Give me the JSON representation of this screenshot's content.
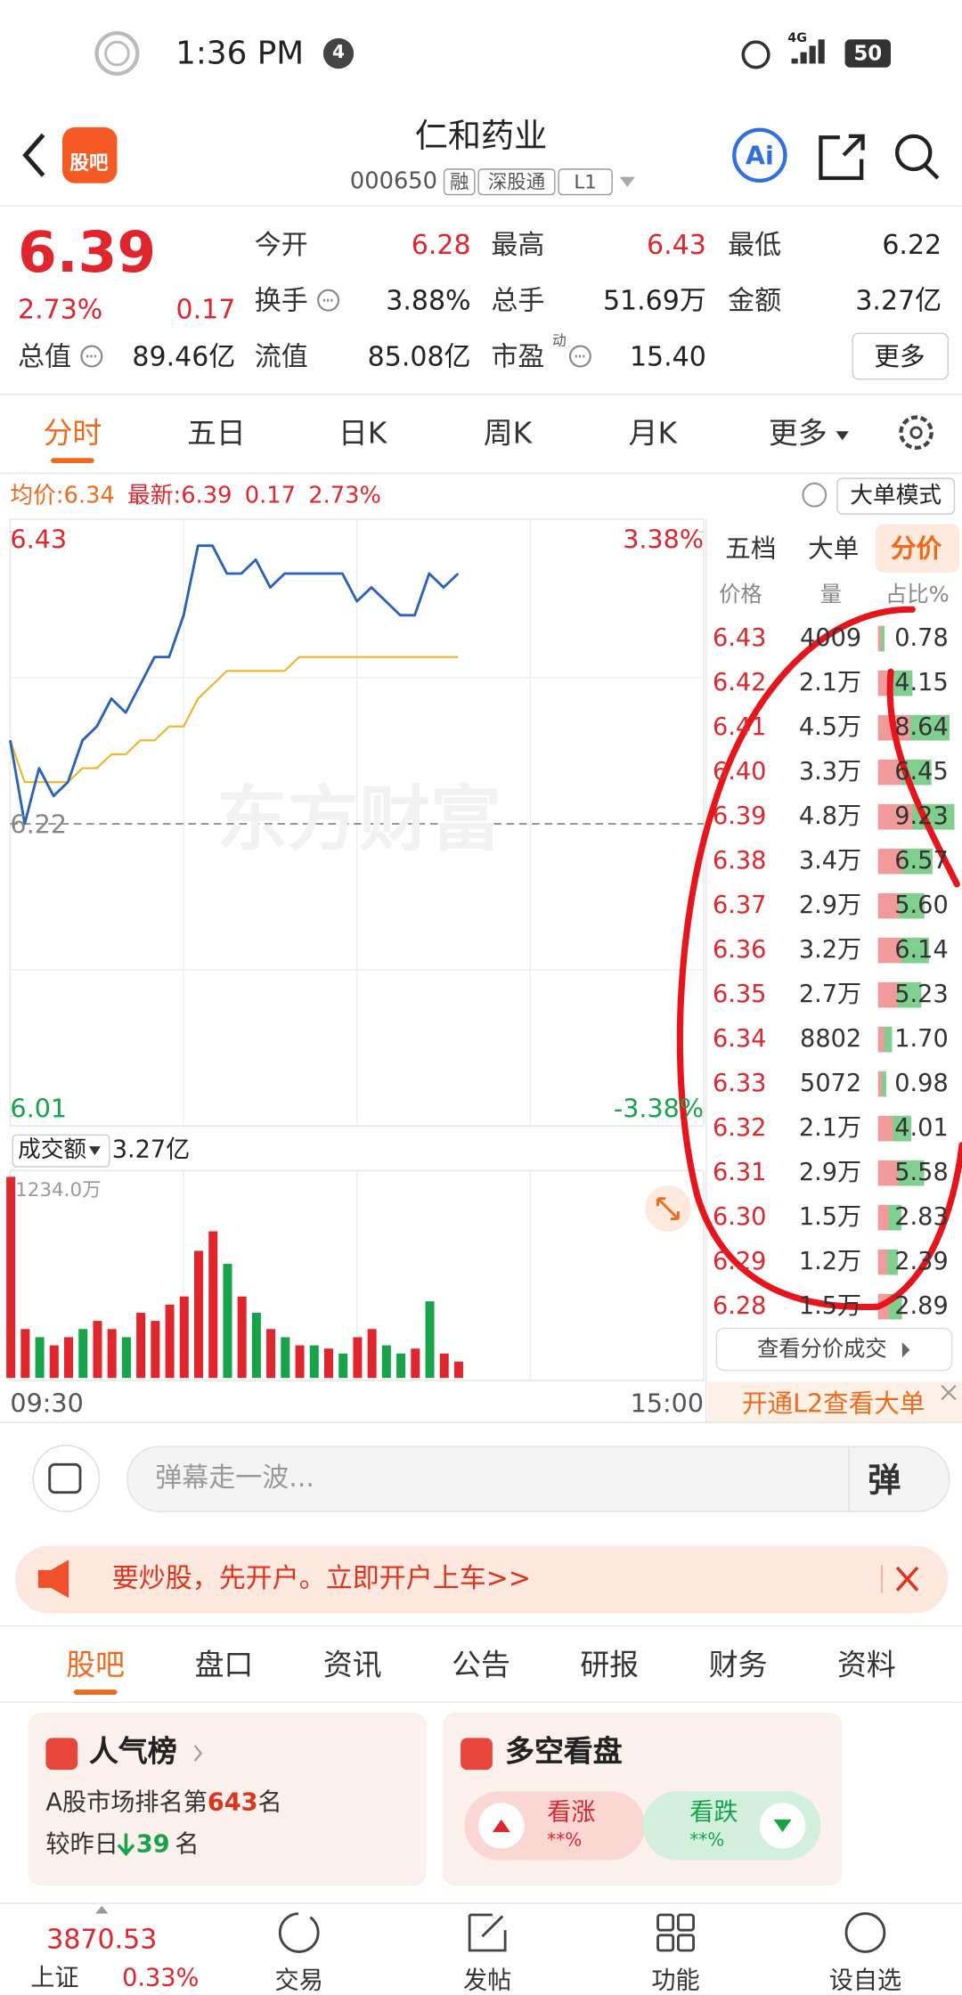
{
  "status_bar": {
    "time": "1:36 PM",
    "notification_count": "4",
    "network": "4G",
    "battery": "50"
  },
  "header": {
    "logo": "股吧",
    "title": "仁和药业",
    "code": "000650",
    "badges": [
      "融",
      "深股通",
      "L1"
    ],
    "ai_button": "Ai"
  },
  "quote": {
    "price": "6.39",
    "change_percent": "2.73%",
    "change": "0.17",
    "stats": [
      {
        "label": "今开",
        "value": "6.28"
      },
      {
        "label": "最高",
        "value": "6.43"
      },
      {
        "label": "最低",
        "value": "6.22"
      },
      {
        "label": "换手",
        "value": "3.88%"
      },
      {
        "label": "总手",
        "value": "51.69万"
      },
      {
        "label": "金额",
        "value": "3.27亿"
      },
      {
        "label": "总值",
        "value": "89.46亿"
      },
      {
        "label": "流值",
        "value": "85.08亿"
      },
      {
        "label": "市盈",
        "value": "15.40"
      }
    ],
    "pe_superscript": "动",
    "more_button": "更多"
  },
  "period_tabs": [
    "分时",
    "五日",
    "日K",
    "周K",
    "月K",
    "更多"
  ],
  "info_bar": {
    "average_label": "均价:",
    "average": "6.34",
    "latest_label": "最新:",
    "latest": "6.39",
    "change": "0.17",
    "change_percent": "2.73%",
    "mode_button": "大单模式"
  },
  "intraday_chart": {
    "type": "line",
    "watermark": "东方财富",
    "xlim": [
      0,
      240
    ],
    "x": [
      0,
      5,
      10,
      15,
      20,
      25,
      30,
      35,
      40,
      45,
      50,
      55,
      60,
      65,
      70,
      75,
      80,
      85,
      90,
      95,
      100,
      105,
      110,
      115,
      120,
      125,
      130,
      135,
      140,
      145,
      150,
      155
    ],
    "x_grid": [
      60,
      120,
      180
    ],
    "x_labels": [
      "09:30",
      "15:00"
    ],
    "ylim": [
      6.01,
      6.43
    ],
    "yticks": [
      6.43,
      6.22,
      6.01
    ],
    "y_grid": [
      6.325,
      6.115
    ],
    "y2lim": [
      -3.38,
      3.38
    ],
    "y2ticks": [
      {
        "value": 3.38,
        "label": "3.38%"
      },
      {
        "value": -3.38,
        "label": "-3.38%"
      }
    ],
    "price": {
      "color": "#2a62b8",
      "values": [
        6.28,
        6.22,
        6.26,
        6.24,
        6.25,
        6.28,
        6.29,
        6.31,
        6.3,
        6.32,
        6.34,
        6.34,
        6.37,
        6.42,
        6.42,
        6.4,
        6.4,
        6.41,
        6.39,
        6.4,
        6.4,
        6.4,
        6.4,
        6.4,
        6.38,
        6.39,
        6.38,
        6.37,
        6.37,
        6.4,
        6.39,
        6.4
      ]
    },
    "average": {
      "color": "#f0b429",
      "values": [
        6.28,
        6.25,
        6.25,
        6.25,
        6.25,
        6.26,
        6.26,
        6.27,
        6.27,
        6.28,
        6.28,
        6.29,
        6.29,
        6.31,
        6.32,
        6.33,
        6.33,
        6.33,
        6.33,
        6.33,
        6.34,
        6.34,
        6.34,
        6.34,
        6.34,
        6.34,
        6.34,
        6.34,
        6.34,
        6.34,
        6.34,
        6.34
      ]
    },
    "volume": {
      "label": "成交额",
      "total": "3.27亿",
      "ylim": [
        0,
        1234
      ],
      "yticks": [
        {
          "value": 1234,
          "label": "1234.0万"
        }
      ],
      "values": [
        1234,
        300,
        250,
        200,
        250,
        300,
        350,
        300,
        250,
        400,
        350,
        450,
        500,
        780,
        900,
        700,
        500,
        400,
        300,
        250,
        200,
        200,
        180,
        150,
        250,
        300,
        200,
        150,
        180,
        470,
        150,
        100
      ],
      "colors": [
        "#e0262c",
        "#e0262c",
        "#16a34a",
        "#e0262c",
        "#e0262c",
        "#16a34a",
        "#e0262c",
        "#e0262c",
        "#16a34a",
        "#e0262c",
        "#e0262c",
        "#e0262c",
        "#e0262c",
        "#e0262c",
        "#e0262c",
        "#16a34a",
        "#e0262c",
        "#16a34a",
        "#e0262c",
        "#16a34a",
        "#e0262c",
        "#16a34a",
        "#e0262c",
        "#16a34a",
        "#e0262c",
        "#e0262c",
        "#16a34a",
        "#16a34a",
        "#e0262c",
        "#16a34a",
        "#e0262c",
        "#e0262c"
      ]
    }
  },
  "order_book": {
    "tabs": [
      "五档",
      "大单",
      "分价"
    ],
    "columns": [
      "价格",
      "量",
      "占比%"
    ],
    "rows": [
      {
        "price": "6.43",
        "volume": "4009",
        "percent": "0.78"
      },
      {
        "price": "6.42",
        "volume": "2.1万",
        "percent": "4.15"
      },
      {
        "price": "6.41",
        "volume": "4.5万",
        "percent": "8.64"
      },
      {
        "price": "6.40",
        "volume": "3.3万",
        "percent": "6.45"
      },
      {
        "price": "6.39",
        "volume": "4.8万",
        "percent": "9.23"
      },
      {
        "price": "6.38",
        "volume": "3.4万",
        "percent": "6.57"
      },
      {
        "price": "6.37",
        "volume": "2.9万",
        "percent": "5.60"
      },
      {
        "price": "6.36",
        "volume": "3.2万",
        "percent": "6.14"
      },
      {
        "price": "6.35",
        "volume": "2.7万",
        "percent": "5.23"
      },
      {
        "price": "6.34",
        "volume": "8802",
        "percent": "1.70"
      },
      {
        "price": "6.33",
        "volume": "5072",
        "percent": "0.98"
      },
      {
        "price": "6.32",
        "volume": "2.1万",
        "percent": "4.01"
      },
      {
        "price": "6.31",
        "volume": "2.9万",
        "percent": "5.58"
      },
      {
        "price": "6.30",
        "volume": "1.5万",
        "percent": "2.83"
      },
      {
        "price": "6.29",
        "volume": "1.2万",
        "percent": "2.39"
      },
      {
        "price": "6.28",
        "volume": "1.5万",
        "percent": "2.89"
      }
    ],
    "detail_button": "查看分价成交",
    "l2_promo": "开通L2查看大单"
  },
  "comment_bar": {
    "placeholder": "弹幕走一波..."
  },
  "banner": {
    "text": "要炒股，先开户。立即开户上车>>"
  },
  "content_tabs": [
    "股吧",
    "盘口",
    "资讯",
    "公告",
    "研报",
    "财务",
    "资料"
  ],
  "popularity_card": {
    "title": "人气榜",
    "rank_prefix": "A股市场排名第",
    "rank": "643",
    "rank_suffix": "名",
    "change_prefix": "较昨日",
    "change": "39",
    "change_suffix": "名"
  },
  "sentiment_card": {
    "title": "多空看盘",
    "bull": "看涨",
    "bull_value": "**%",
    "bear": "看跌",
    "bear_value": "**%"
  },
  "bottom_nav": {
    "index_value": "3870.53",
    "index_name": "上证",
    "index_change": "0.33%",
    "items": [
      "交易",
      "发帖",
      "功能",
      "设自选"
    ]
  }
}
